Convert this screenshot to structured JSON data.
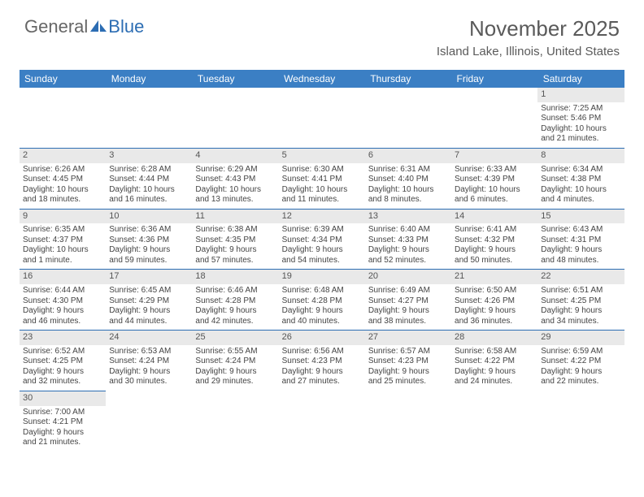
{
  "brand": {
    "part1": "General",
    "part2": "Blue"
  },
  "title": "November 2025",
  "location": "Island Lake, Illinois, United States",
  "colors": {
    "header_bg": "#3b7fc4",
    "header_text": "#ffffff",
    "daynum_bg": "#e9e9e9",
    "border": "#2c6db3",
    "text": "#444444",
    "title_text": "#5a5a5a",
    "brand_gray": "#666666",
    "brand_blue": "#2c6db3"
  },
  "weekdays": [
    "Sunday",
    "Monday",
    "Tuesday",
    "Wednesday",
    "Thursday",
    "Friday",
    "Saturday"
  ],
  "weeks": [
    [
      null,
      null,
      null,
      null,
      null,
      null,
      {
        "n": "1",
        "sunrise": "7:25 AM",
        "sunset": "5:46 PM",
        "day_h": "10",
        "day_m": "21"
      }
    ],
    [
      {
        "n": "2",
        "sunrise": "6:26 AM",
        "sunset": "4:45 PM",
        "day_h": "10",
        "day_m": "18"
      },
      {
        "n": "3",
        "sunrise": "6:28 AM",
        "sunset": "4:44 PM",
        "day_h": "10",
        "day_m": "16"
      },
      {
        "n": "4",
        "sunrise": "6:29 AM",
        "sunset": "4:43 PM",
        "day_h": "10",
        "day_m": "13"
      },
      {
        "n": "5",
        "sunrise": "6:30 AM",
        "sunset": "4:41 PM",
        "day_h": "10",
        "day_m": "11"
      },
      {
        "n": "6",
        "sunrise": "6:31 AM",
        "sunset": "4:40 PM",
        "day_h": "10",
        "day_m": "8"
      },
      {
        "n": "7",
        "sunrise": "6:33 AM",
        "sunset": "4:39 PM",
        "day_h": "10",
        "day_m": "6"
      },
      {
        "n": "8",
        "sunrise": "6:34 AM",
        "sunset": "4:38 PM",
        "day_h": "10",
        "day_m": "4"
      }
    ],
    [
      {
        "n": "9",
        "sunrise": "6:35 AM",
        "sunset": "4:37 PM",
        "day_h": "10",
        "day_m": "1",
        "singular": true
      },
      {
        "n": "10",
        "sunrise": "6:36 AM",
        "sunset": "4:36 PM",
        "day_h": "9",
        "day_m": "59"
      },
      {
        "n": "11",
        "sunrise": "6:38 AM",
        "sunset": "4:35 PM",
        "day_h": "9",
        "day_m": "57"
      },
      {
        "n": "12",
        "sunrise": "6:39 AM",
        "sunset": "4:34 PM",
        "day_h": "9",
        "day_m": "54"
      },
      {
        "n": "13",
        "sunrise": "6:40 AM",
        "sunset": "4:33 PM",
        "day_h": "9",
        "day_m": "52"
      },
      {
        "n": "14",
        "sunrise": "6:41 AM",
        "sunset": "4:32 PM",
        "day_h": "9",
        "day_m": "50"
      },
      {
        "n": "15",
        "sunrise": "6:43 AM",
        "sunset": "4:31 PM",
        "day_h": "9",
        "day_m": "48"
      }
    ],
    [
      {
        "n": "16",
        "sunrise": "6:44 AM",
        "sunset": "4:30 PM",
        "day_h": "9",
        "day_m": "46"
      },
      {
        "n": "17",
        "sunrise": "6:45 AM",
        "sunset": "4:29 PM",
        "day_h": "9",
        "day_m": "44"
      },
      {
        "n": "18",
        "sunrise": "6:46 AM",
        "sunset": "4:28 PM",
        "day_h": "9",
        "day_m": "42"
      },
      {
        "n": "19",
        "sunrise": "6:48 AM",
        "sunset": "4:28 PM",
        "day_h": "9",
        "day_m": "40"
      },
      {
        "n": "20",
        "sunrise": "6:49 AM",
        "sunset": "4:27 PM",
        "day_h": "9",
        "day_m": "38"
      },
      {
        "n": "21",
        "sunrise": "6:50 AM",
        "sunset": "4:26 PM",
        "day_h": "9",
        "day_m": "36"
      },
      {
        "n": "22",
        "sunrise": "6:51 AM",
        "sunset": "4:25 PM",
        "day_h": "9",
        "day_m": "34"
      }
    ],
    [
      {
        "n": "23",
        "sunrise": "6:52 AM",
        "sunset": "4:25 PM",
        "day_h": "9",
        "day_m": "32"
      },
      {
        "n": "24",
        "sunrise": "6:53 AM",
        "sunset": "4:24 PM",
        "day_h": "9",
        "day_m": "30"
      },
      {
        "n": "25",
        "sunrise": "6:55 AM",
        "sunset": "4:24 PM",
        "day_h": "9",
        "day_m": "29"
      },
      {
        "n": "26",
        "sunrise": "6:56 AM",
        "sunset": "4:23 PM",
        "day_h": "9",
        "day_m": "27"
      },
      {
        "n": "27",
        "sunrise": "6:57 AM",
        "sunset": "4:23 PM",
        "day_h": "9",
        "day_m": "25"
      },
      {
        "n": "28",
        "sunrise": "6:58 AM",
        "sunset": "4:22 PM",
        "day_h": "9",
        "day_m": "24"
      },
      {
        "n": "29",
        "sunrise": "6:59 AM",
        "sunset": "4:22 PM",
        "day_h": "9",
        "day_m": "22"
      }
    ],
    [
      {
        "n": "30",
        "sunrise": "7:00 AM",
        "sunset": "4:21 PM",
        "day_h": "9",
        "day_m": "21"
      },
      null,
      null,
      null,
      null,
      null,
      null
    ]
  ],
  "labels": {
    "sunrise": "Sunrise:",
    "sunset": "Sunset:",
    "daylight": "Daylight:",
    "hours": "hours",
    "and": "and",
    "minute": "minute.",
    "minutes": "minutes."
  }
}
